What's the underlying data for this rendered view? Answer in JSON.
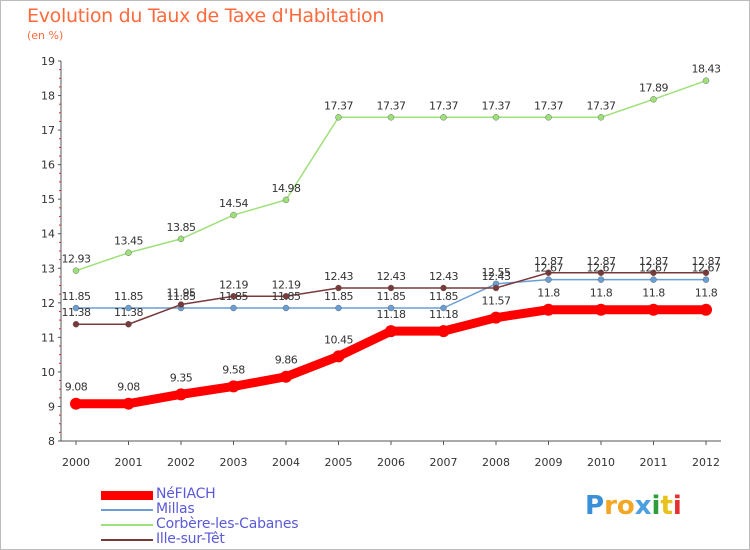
{
  "header": {
    "title": "Evolution du Taux de Taxe d'Habitation",
    "subtitle": "(en %)"
  },
  "logo_letters": [
    "P",
    "r",
    "o",
    "x",
    "i",
    "t",
    "i"
  ],
  "logo_colors": [
    "#3a8fd8",
    "#f5a623",
    "#f5a623",
    "#4aa0e0",
    "#2e9e3a",
    "#e8c21a",
    "#e53030"
  ],
  "chart_data": {
    "type": "line",
    "title": "Evolution du Taux de Taxe d'Habitation",
    "ylabel": "(en %)",
    "xlabel": "",
    "x": [
      "2000",
      "2001",
      "2002",
      "2003",
      "2004",
      "2005",
      "2006",
      "2007",
      "2008",
      "2009",
      "2010",
      "2011",
      "2012"
    ],
    "ylim": [
      8,
      19
    ],
    "yticks": [
      "8",
      "9",
      "10",
      "11",
      "12",
      "13",
      "14",
      "15",
      "16",
      "17",
      "18",
      "19"
    ],
    "grid": false,
    "legend_position": "bottom-left",
    "series": [
      {
        "name": "NéFIACH",
        "color": "#ff0000",
        "values": [
          9.08,
          9.08,
          9.35,
          9.58,
          9.86,
          10.45,
          11.18,
          11.18,
          11.57,
          11.8,
          11.8,
          11.8,
          11.8
        ],
        "labels": [
          "9.08",
          "9.08",
          "9.35",
          "9.58",
          "9.86",
          "10.45",
          "11.18",
          "11.18",
          "11.57",
          "11.8",
          "11.8",
          "11.8",
          "11.8"
        ]
      },
      {
        "name": "Millas",
        "color": "#6a9ed4",
        "values": [
          11.85,
          11.85,
          11.85,
          11.85,
          11.85,
          11.85,
          11.85,
          11.85,
          12.55,
          12.67,
          12.67,
          12.67,
          12.67
        ],
        "labels": [
          "11.85",
          "11.85",
          "11.85",
          "11.85",
          "11.85",
          "11.85",
          "11.85",
          "11.85",
          "12.55",
          "12.67",
          "12.67",
          "12.67",
          "12.67"
        ]
      },
      {
        "name": "Corbère-les-Cabanes",
        "color": "#9ee07a",
        "values": [
          12.93,
          13.45,
          13.85,
          14.54,
          14.98,
          17.37,
          17.37,
          17.37,
          17.37,
          17.37,
          17.37,
          17.89,
          18.43
        ],
        "labels": [
          "12.93",
          "13.45",
          "13.85",
          "14.54",
          "14.98",
          "17.37",
          "17.37",
          "17.37",
          "17.37",
          "17.37",
          "17.37",
          "17.89",
          "18.43"
        ]
      },
      {
        "name": "Ille-sur-Têt",
        "color": "#7a3a3a",
        "values": [
          11.38,
          11.38,
          11.95,
          12.19,
          12.19,
          12.43,
          12.43,
          12.43,
          12.43,
          12.87,
          12.87,
          12.87,
          12.87
        ],
        "labels": [
          "11.38",
          "11.38",
          "11.95",
          "12.19",
          "12.19",
          "12.43",
          "12.43",
          "12.43",
          "12.43",
          "12.87",
          "12.87",
          "12.87",
          "12.87"
        ]
      }
    ]
  }
}
